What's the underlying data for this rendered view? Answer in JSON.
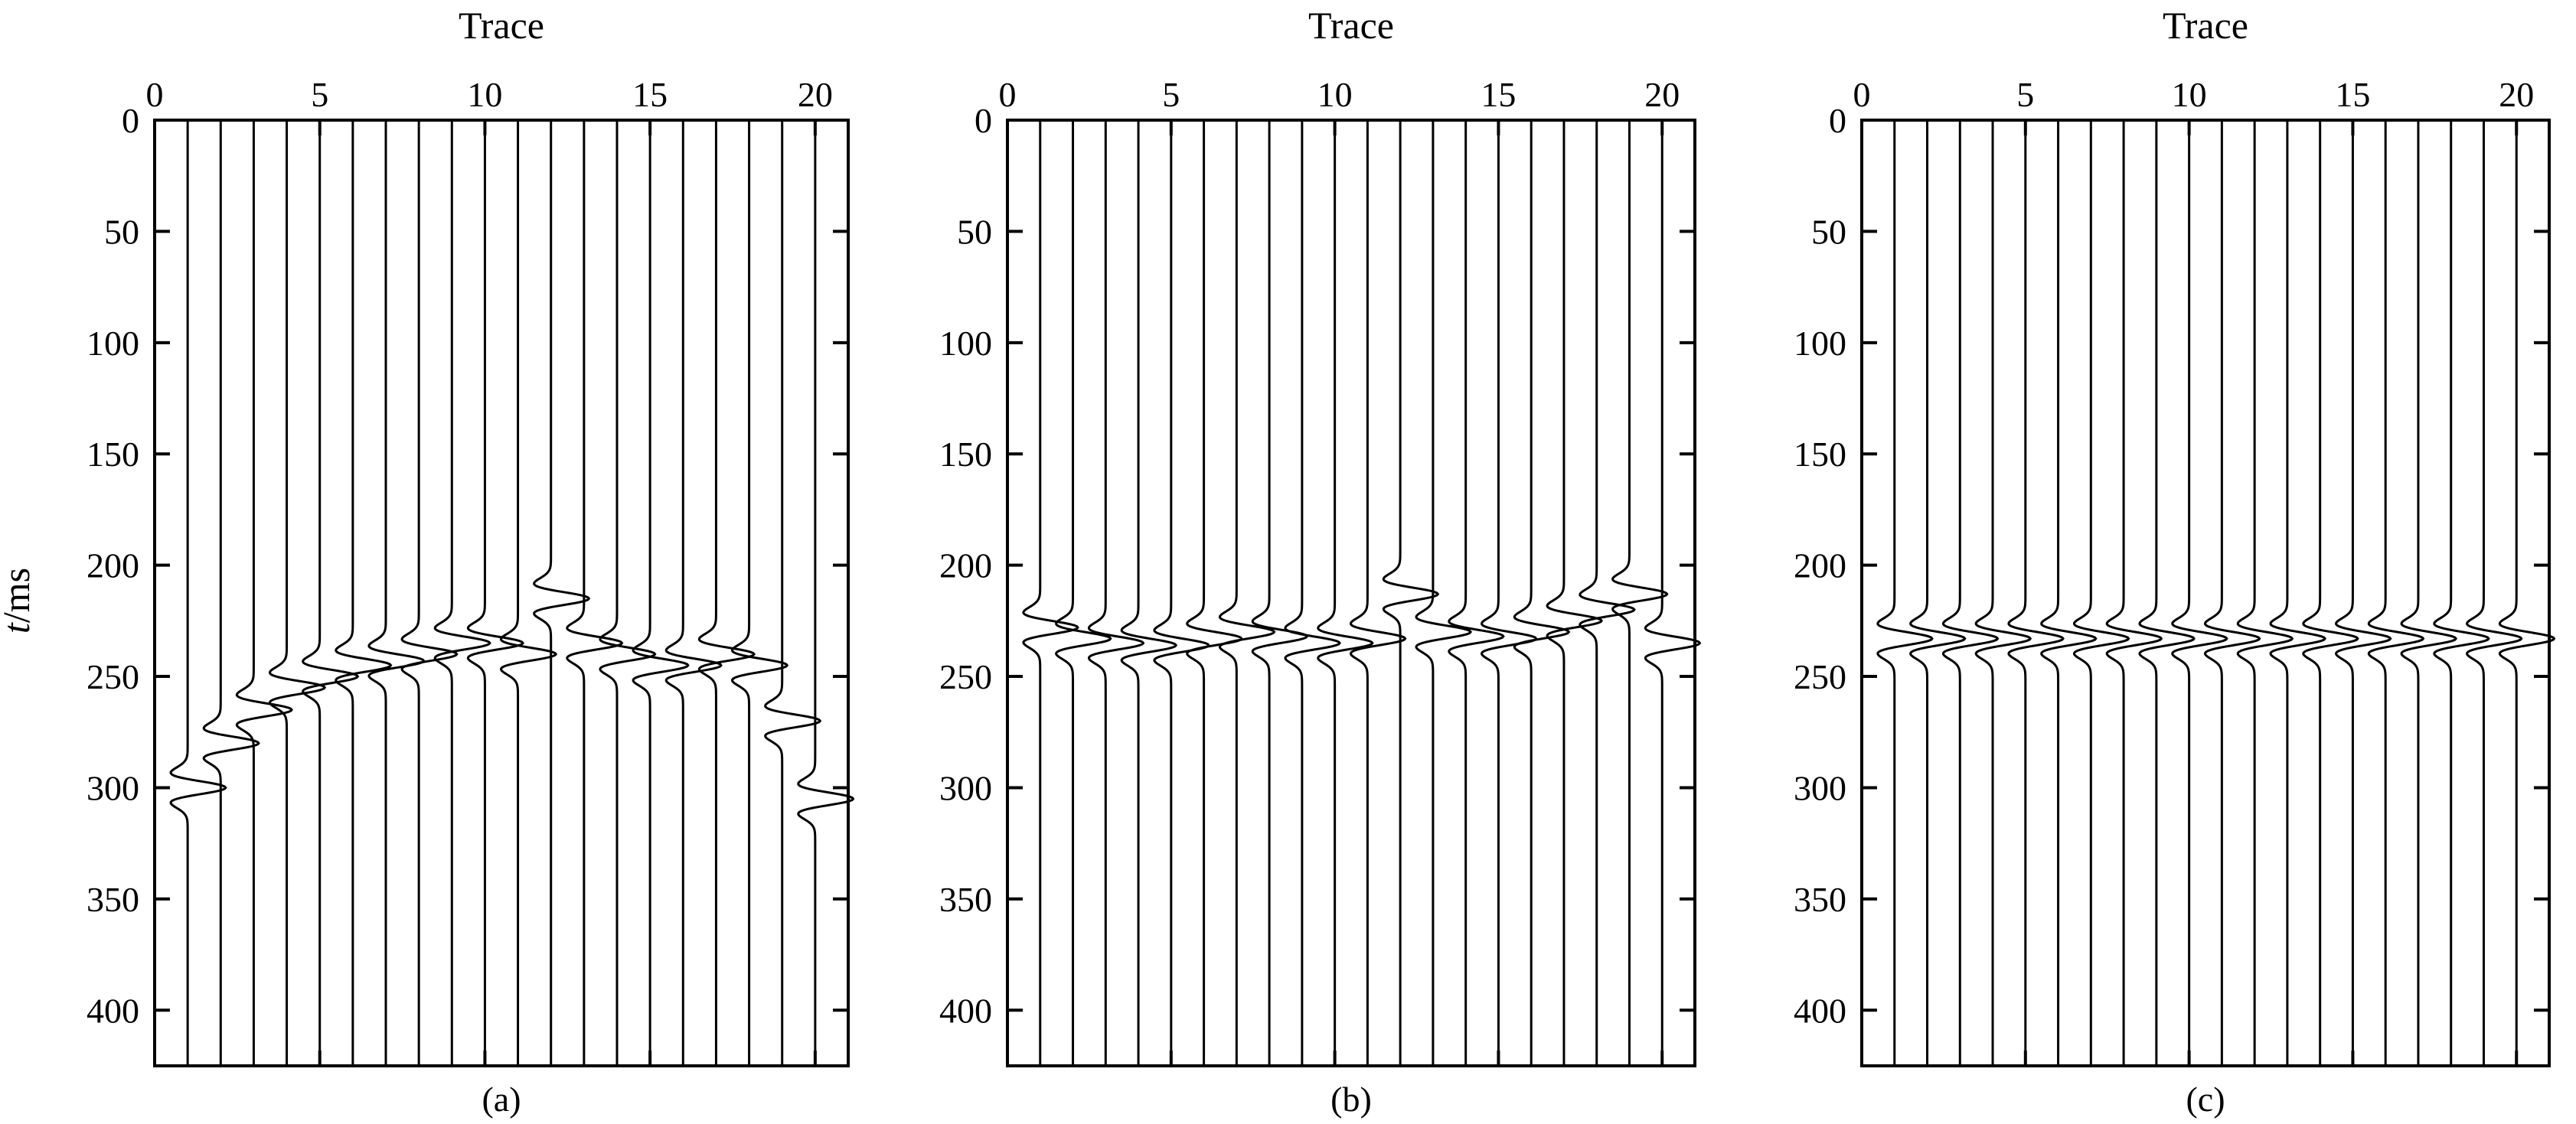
{
  "chart_data": [
    {
      "type": "seismic-wiggle",
      "panel_label": "(a)",
      "x_axis_title": "Trace",
      "y_axis_title_italic": "t",
      "y_axis_title_unit": "/ms",
      "x_ticks": [
        0,
        5,
        10,
        15,
        20
      ],
      "y_ticks": [
        0,
        50,
        100,
        150,
        200,
        250,
        300,
        350,
        400
      ],
      "xlim": [
        0,
        21
      ],
      "ylim": [
        0,
        425
      ],
      "y_inverted": true,
      "x_axis_position": "top",
      "traces": [
        1,
        2,
        3,
        4,
        5,
        6,
        7,
        8,
        9,
        10,
        11,
        12,
        13,
        14,
        15,
        16,
        17,
        18,
        19,
        20
      ],
      "arrival_times_ms": [
        300,
        280,
        265,
        255,
        250,
        245,
        243,
        240,
        235,
        235,
        240,
        215,
        235,
        240,
        245,
        245,
        240,
        245,
        270,
        305
      ]
    },
    {
      "type": "seismic-wiggle",
      "panel_label": "(b)",
      "x_axis_title": "Trace",
      "x_ticks": [
        0,
        5,
        10,
        15,
        20
      ],
      "y_ticks": [
        0,
        50,
        100,
        150,
        200,
        250,
        300,
        350,
        400
      ],
      "xlim": [
        0,
        21
      ],
      "ylim": [
        0,
        425
      ],
      "y_inverted": true,
      "x_axis_position": "top",
      "traces": [
        1,
        2,
        3,
        4,
        5,
        6,
        7,
        8,
        9,
        10,
        11,
        12,
        13,
        14,
        15,
        16,
        17,
        18,
        19,
        20
      ],
      "arrival_times_ms": [
        228,
        233,
        235,
        236,
        236,
        233,
        230,
        232,
        235,
        235,
        233,
        213,
        230,
        232,
        233,
        230,
        225,
        220,
        213,
        235
      ]
    },
    {
      "type": "seismic-wiggle",
      "panel_label": "(c)",
      "x_axis_title": "Trace",
      "x_ticks": [
        0,
        5,
        10,
        15,
        20
      ],
      "y_ticks": [
        0,
        50,
        100,
        150,
        200,
        250,
        300,
        350,
        400
      ],
      "xlim": [
        0,
        21
      ],
      "ylim": [
        0,
        425
      ],
      "y_inverted": true,
      "x_axis_position": "top",
      "traces": [
        1,
        2,
        3,
        4,
        5,
        6,
        7,
        8,
        9,
        10,
        11,
        12,
        13,
        14,
        15,
        16,
        17,
        18,
        19,
        20
      ],
      "arrival_times_ms": [
        233,
        233,
        233,
        233,
        233,
        233,
        233,
        233,
        233,
        233,
        233,
        233,
        233,
        233,
        233,
        233,
        233,
        233,
        233,
        233
      ]
    }
  ],
  "style": {
    "line_color": "#000000",
    "background": "#ffffff"
  }
}
